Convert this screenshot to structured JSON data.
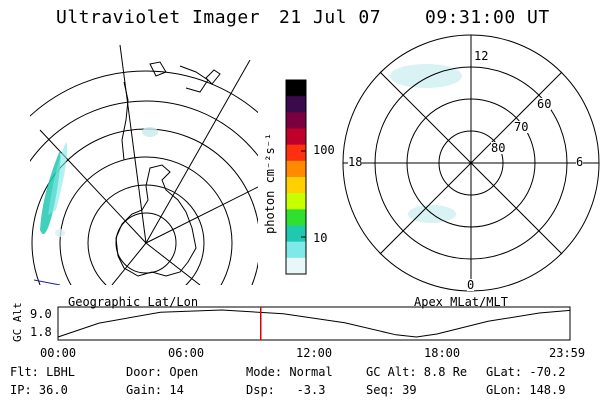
{
  "header": {
    "title": "Ultraviolet Imager",
    "date": "21 Jul 07",
    "time": "09:31:00 UT"
  },
  "geo_panel": {
    "caption": "Geographic Lat/Lon"
  },
  "polar_panel": {
    "caption": "Apex MLat/MLT",
    "mlt_labels": [
      "12",
      "18",
      "6",
      "0"
    ],
    "mlat_labels": [
      "60",
      "70",
      "80"
    ]
  },
  "colorbar": {
    "unit_label": "photon cm⁻²s⁻¹",
    "ticks": [
      "100",
      "10"
    ],
    "colors": [
      "#000000",
      "#3a0a4a",
      "#7a0040",
      "#c0002a",
      "#ff3010",
      "#ff8a00",
      "#ffd000",
      "#c8ff00",
      "#30e030",
      "#20c8b0",
      "#80e8e8",
      "#e8f8f8"
    ]
  },
  "orbit": {
    "axis_title": "GC Alt",
    "y_ticks": [
      "9.0",
      "1.8"
    ],
    "x_ticks": [
      "00:00",
      "06:00",
      "12:00",
      "18:00",
      "23:59"
    ],
    "marker_color": "#e00000",
    "marker_time_fraction": 0.396,
    "line": {
      "x": [
        0,
        0.08,
        0.2,
        0.32,
        0.44,
        0.56,
        0.66,
        0.7,
        0.74,
        0.84,
        0.94,
        1.0
      ],
      "y": [
        1.8,
        5.5,
        8.4,
        9.0,
        8.0,
        5.6,
        2.4,
        1.8,
        2.6,
        6.0,
        8.2,
        8.9
      ]
    }
  },
  "status": {
    "filter": "Flt: LBHL",
    "door": "Door: Open",
    "mode": "Mode: Normal",
    "gc_alt": "GC Alt: 8.8 Re",
    "glat": "GLat: -70.2",
    "ip": "IP: 36.0",
    "gain": "Gain: 14",
    "dsp": "Dsp:   -3.3",
    "seq": "Seq: 39",
    "glon": "GLon: 148.9"
  }
}
